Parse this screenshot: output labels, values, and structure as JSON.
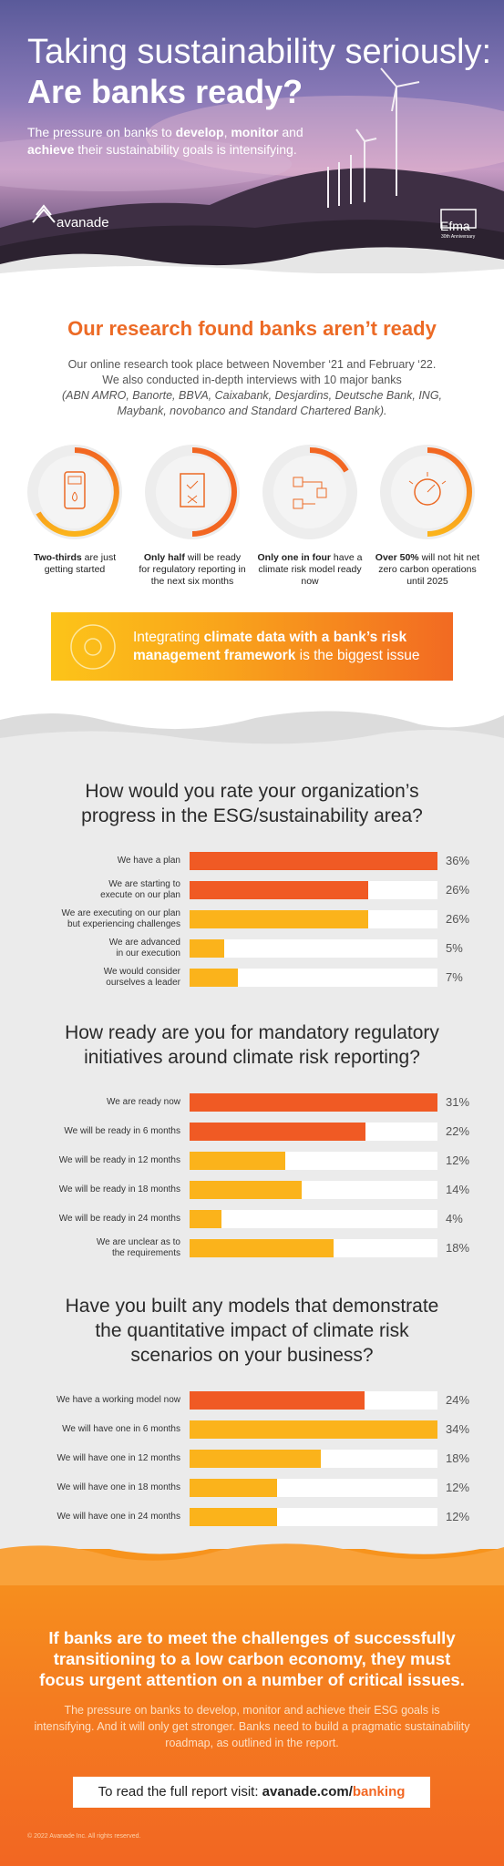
{
  "header": {
    "title_line1": "Taking sustainability seriously:",
    "title_line2": "Are banks ready?",
    "subtitle_parts": [
      "The pressure on banks to ",
      "develop",
      ", ",
      "monitor",
      " and ",
      "achieve",
      " their sustainability goals is intensifying."
    ],
    "logo": "avanade",
    "partner_logo": "Efma",
    "partner_tagline": "30th Anniversary"
  },
  "research": {
    "heading": "Our research found banks aren’t ready",
    "intro_line1": "Our online research took place between November ‘21 and February ‘22.",
    "intro_line2": "We also conducted in-depth interviews with 10 major banks",
    "banks": "(ABN AMRO, Banorte, BBVA, Caixabank, Desjardins, Deutsche Bank, ING, Maybank, novobanco and Standard Chartered Bank).",
    "stats": [
      {
        "bold": "Two-thirds",
        "text": " are just getting started"
      },
      {
        "bold": "Only half",
        "text": " will be ready for regulatory reporting in the next six months"
      },
      {
        "bold": "Only one in four",
        "text": " have a climate risk model ready now"
      },
      {
        "bold": "Over 50%",
        "text": " will not hit net zero carbon operations until 2025"
      }
    ],
    "banner_parts": [
      "Integrating ",
      "climate data with a bank’s risk management framework",
      " is the biggest issue"
    ]
  },
  "chart_data": [
    {
      "type": "bar",
      "title": "How would you rate your organization’s progress in the ESG/sustainability area?",
      "categories": [
        "We have a plan",
        "We are starting to\nexecute on our plan",
        "We are executing on our plan\nbut experiencing challenges",
        "We are advanced\nin our execution",
        "We would consider\nourselves a leader"
      ],
      "values": [
        36,
        26,
        26,
        5,
        7
      ],
      "value_labels": [
        "36%",
        "26%",
        "26%",
        "5%",
        "7%"
      ],
      "colors": [
        "#f05a24",
        "#f05a24",
        "#fbb31b",
        "#fbb31b",
        "#fbb31b"
      ],
      "xlim": [
        0,
        36
      ]
    },
    {
      "type": "bar",
      "title": "How ready are you for mandatory regulatory initiatives around climate risk reporting?",
      "categories": [
        "We are ready now",
        "We will be ready in 6 months",
        "We will be ready in 12 months",
        "We will be ready in 18 months",
        "We will be ready in 24 months",
        "We are unclear as to\nthe requirements"
      ],
      "values": [
        31,
        22,
        12,
        14,
        4,
        18
      ],
      "value_labels": [
        "31%",
        "22%",
        "12%",
        "14%",
        "4%",
        "18%"
      ],
      "colors": [
        "#f05a24",
        "#f05a24",
        "#fbb31b",
        "#fbb31b",
        "#fbb31b",
        "#fbb31b"
      ],
      "xlim": [
        0,
        31
      ]
    },
    {
      "type": "bar",
      "title": "Have you built any models that demonstrate the quantitative impact of climate risk scenarios on your business?",
      "categories": [
        "We have a working model now",
        "We will have one in 6 months",
        "We will have one in 12 months",
        "We will have one in 18 months",
        "We will have one in 24 months"
      ],
      "values": [
        24,
        34,
        18,
        12,
        12
      ],
      "value_labels": [
        "24%",
        "34%",
        "18%",
        "12%",
        "12%"
      ],
      "colors": [
        "#f05a24",
        "#fbb31b",
        "#fbb31b",
        "#fbb31b",
        "#fbb31b"
      ],
      "xlim": [
        0,
        34
      ]
    }
  ],
  "outro": {
    "heading": "If banks are to meet the challenges of successfully transitioning to a low carbon economy, they must focus urgent attention on a number of critical issues.",
    "text": "The pressure on banks to develop, monitor and achieve their ESG goals is intensifying. And it will only get stronger. Banks need to build a pragmatic sustainability roadmap, as outlined in the report.",
    "cta_parts": [
      "To read the full report visit: ",
      "avanade.com/",
      "banking"
    ],
    "footer": "© 2022 Avanade Inc. All rights reserved."
  }
}
